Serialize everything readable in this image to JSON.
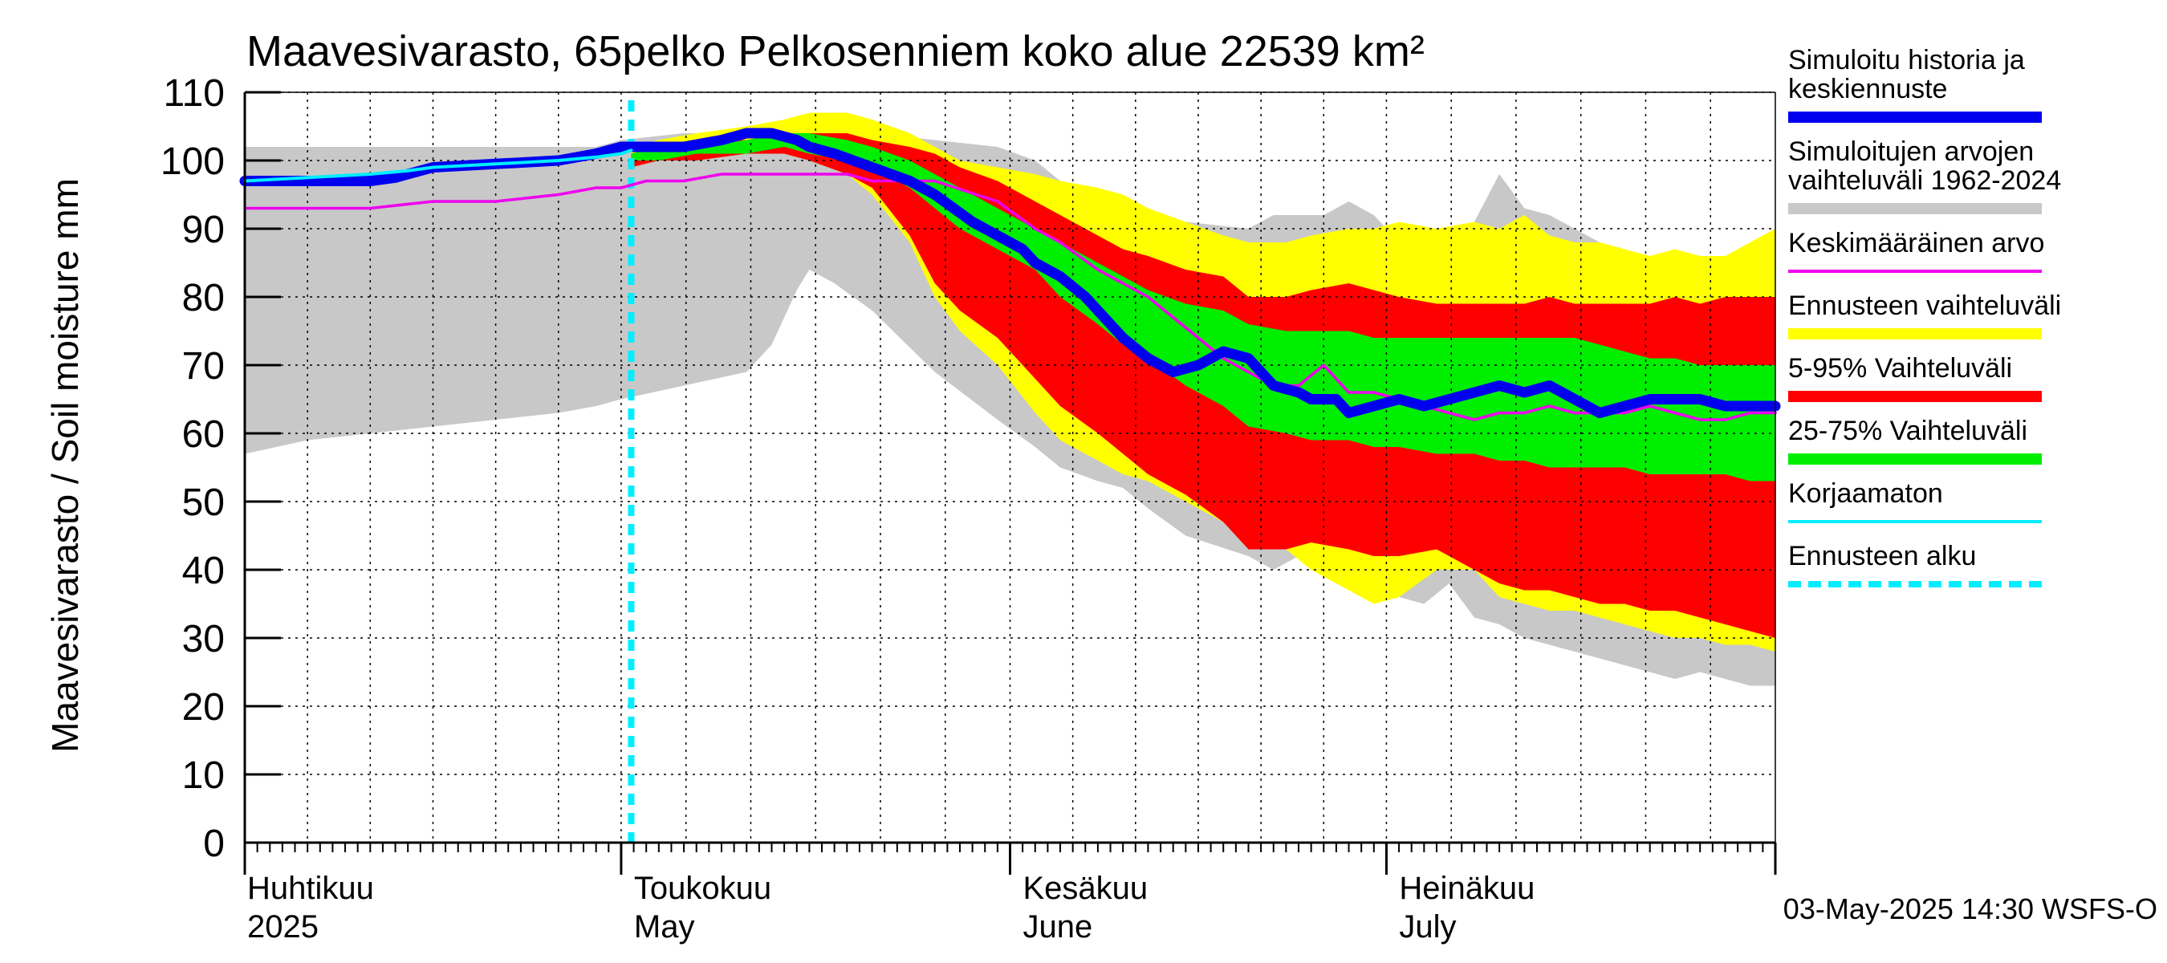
{
  "chart_data": {
    "type": "area",
    "title": "Maavesivarasto, 65pelko Pelkosenniem koko alue 22539 km²",
    "ylabel": "Maavesivarasto / Soil moisture   mm",
    "xlabel": "",
    "ylim": [
      0,
      110
    ],
    "yticks": [
      0,
      10,
      20,
      30,
      40,
      50,
      60,
      70,
      80,
      90,
      100,
      110
    ],
    "xlim_days": [
      0,
      122
    ],
    "x_unit": "days since 2025-04-01",
    "forecast_start_day": 30.8,
    "month_labels": [
      {
        "day": 0,
        "fi": "Huhtikuu",
        "en": "2025"
      },
      {
        "day": 30,
        "fi": "Toukokuu",
        "en": "May"
      },
      {
        "day": 61,
        "fi": "Kesäkuu",
        "en": "June"
      },
      {
        "day": 91,
        "fi": "Heinäkuu",
        "en": "July"
      }
    ],
    "timestamp": "03-May-2025 14:30 WSFS-O",
    "legend": [
      {
        "label": "Simuloitu historia ja keskiennuste",
        "color": "#0000ee",
        "style": "thick"
      },
      {
        "label": "Simuloitujen arvojen vaihteluväli 1962-2024",
        "color": "#c8c8c8",
        "style": "thick"
      },
      {
        "label": "Keskimääräinen arvo",
        "color": "#ee00ee",
        "style": "thin"
      },
      {
        "label": "Ennusteen vaihteluväli",
        "color": "#ffff00",
        "style": "thick"
      },
      {
        "label": "5-95% Vaihteluväli",
        "color": "#ff0000",
        "style": "thick"
      },
      {
        "label": "25-75% Vaihteluväli",
        "color": "#00ee00",
        "style": "thick"
      },
      {
        "label": "Korjaamaton",
        "color": "#00eeff",
        "style": "thin"
      },
      {
        "label": "Ennusteen alku",
        "color": "#00eeff",
        "style": "dashed"
      }
    ],
    "series": [
      {
        "name": "Simuloitujen arvojen vaihteluväli 1962-2024",
        "kind": "band",
        "color": "#c8c8c8",
        "x": [
          0,
          5,
          10,
          15,
          20,
          25,
          28,
          30,
          35,
          40,
          42,
          44,
          45,
          47,
          50,
          55,
          60,
          63,
          65,
          68,
          70,
          72,
          75,
          80,
          82,
          84,
          86,
          88,
          90,
          92,
          94,
          96,
          98,
          100,
          102,
          104,
          106,
          108,
          110,
          112,
          114,
          116,
          118,
          120,
          122
        ],
        "upper": [
          102,
          102,
          102,
          102,
          102,
          102,
          102,
          103,
          104,
          104,
          104,
          104,
          104,
          104,
          104,
          103,
          102,
          100,
          97,
          95,
          92,
          91,
          91,
          90,
          92,
          92,
          92,
          94,
          92,
          88,
          88,
          90,
          91,
          98,
          93,
          92,
          90,
          88,
          86,
          85,
          84,
          85,
          85,
          86,
          87
        ],
        "lower": [
          57,
          59,
          60,
          61,
          62,
          63,
          64,
          65,
          67,
          69,
          73,
          81,
          84,
          82,
          78,
          69,
          62,
          58,
          55,
          53,
          52,
          49,
          45,
          42,
          40,
          42,
          47,
          40,
          38,
          36,
          35,
          38,
          33,
          32,
          30,
          29,
          28,
          27,
          26,
          25,
          24,
          25,
          24,
          23,
          23
        ]
      },
      {
        "name": "Ennusteen vaihteluväli",
        "kind": "band",
        "color": "#ffff00",
        "x": [
          30.8,
          33,
          36,
          40,
          43,
          45,
          48,
          50,
          53,
          55,
          57,
          60,
          63,
          65,
          68,
          70,
          72,
          75,
          78,
          80,
          83,
          85,
          88,
          90,
          92,
          95,
          98,
          100,
          102,
          104,
          106,
          108,
          110,
          112,
          114,
          116,
          118,
          120,
          122
        ],
        "upper": [
          102,
          103,
          104,
          105,
          106,
          107,
          107,
          106,
          104,
          102,
          100,
          99,
          98,
          97,
          96,
          95,
          93,
          91,
          89,
          88,
          88,
          89,
          90,
          90,
          91,
          90,
          91,
          90,
          92,
          89,
          88,
          88,
          87,
          86,
          87,
          86,
          86,
          88,
          90
        ],
        "lower": [
          99,
          100,
          100,
          101,
          101,
          100,
          98,
          95,
          88,
          80,
          75,
          70,
          63,
          59,
          56,
          54,
          53,
          50,
          47,
          45,
          43,
          40,
          37,
          35,
          36,
          40,
          40,
          36,
          35,
          34,
          34,
          33,
          32,
          31,
          30,
          30,
          29,
          29,
          28
        ]
      },
      {
        "name": "5-95% Vaihteluväli",
        "kind": "band",
        "color": "#ff0000",
        "x": [
          30.8,
          33,
          36,
          40,
          43,
          45,
          48,
          50,
          53,
          55,
          57,
          60,
          63,
          65,
          68,
          70,
          72,
          75,
          78,
          80,
          83,
          85,
          88,
          90,
          92,
          95,
          98,
          100,
          102,
          104,
          106,
          108,
          110,
          112,
          114,
          116,
          118,
          120,
          122
        ],
        "upper": [
          101,
          102,
          103,
          103,
          104,
          104,
          104,
          103,
          102,
          101,
          99,
          97,
          94,
          92,
          89,
          87,
          86,
          84,
          83,
          80,
          80,
          81,
          82,
          81,
          80,
          79,
          79,
          79,
          79,
          80,
          79,
          79,
          79,
          79,
          80,
          79,
          80,
          80,
          80
        ],
        "lower": [
          99,
          100,
          100,
          101,
          101,
          100,
          98,
          96,
          89,
          82,
          78,
          74,
          68,
          64,
          60,
          57,
          54,
          51,
          47,
          43,
          43,
          44,
          43,
          42,
          42,
          43,
          40,
          38,
          37,
          37,
          36,
          35,
          35,
          34,
          34,
          33,
          32,
          31,
          30
        ]
      },
      {
        "name": "25-75% Vaihteluväli",
        "kind": "band",
        "color": "#00ee00",
        "x": [
          30.8,
          33,
          36,
          40,
          43,
          45,
          48,
          50,
          53,
          55,
          57,
          60,
          63,
          65,
          68,
          70,
          72,
          75,
          78,
          80,
          83,
          85,
          88,
          90,
          92,
          95,
          98,
          100,
          102,
          104,
          106,
          108,
          110,
          112,
          114,
          116,
          118,
          120,
          122
        ],
        "upper": [
          101,
          102,
          102,
          103,
          104,
          104,
          103,
          102,
          100,
          98,
          96,
          93,
          90,
          88,
          85,
          83,
          81,
          79,
          78,
          76,
          75,
          75,
          75,
          74,
          74,
          74,
          74,
          74,
          74,
          74,
          74,
          73,
          72,
          71,
          71,
          70,
          70,
          70,
          70
        ],
        "lower": [
          100,
          100,
          101,
          101,
          102,
          101,
          100,
          99,
          96,
          93,
          90,
          87,
          84,
          80,
          76,
          73,
          71,
          67,
          64,
          61,
          60,
          59,
          59,
          58,
          58,
          57,
          57,
          56,
          56,
          55,
          55,
          55,
          55,
          54,
          54,
          54,
          54,
          53,
          53
        ]
      },
      {
        "name": "Keskimääräinen arvo",
        "kind": "line",
        "color": "#ee00ee",
        "x": [
          0,
          5,
          10,
          15,
          20,
          25,
          28,
          30,
          32,
          35,
          38,
          40,
          42,
          45,
          48,
          50,
          55,
          60,
          63,
          65,
          68,
          70,
          72,
          74,
          76,
          78,
          80,
          82,
          84,
          86,
          88,
          90,
          92,
          94,
          96,
          98,
          100,
          102,
          104,
          106,
          108,
          110,
          112,
          114,
          116,
          118,
          120,
          122
        ],
        "y": [
          93,
          93,
          93,
          94,
          94,
          95,
          96,
          96,
          97,
          97,
          98,
          98,
          98,
          98,
          98,
          97,
          97,
          94,
          90,
          88,
          84,
          82,
          80,
          77,
          74,
          71,
          69,
          67,
          67,
          70,
          66,
          66,
          65,
          64,
          63,
          62,
          63,
          63,
          64,
          63,
          63,
          63,
          64,
          63,
          62,
          62,
          63,
          63
        ]
      },
      {
        "name": "Korjaamaton",
        "kind": "line",
        "color": "#00eeff",
        "x": [
          0,
          5,
          10,
          13,
          15,
          20,
          25,
          28,
          30,
          30.8
        ],
        "y": [
          97,
          97.5,
          98,
          98.5,
          99,
          99.5,
          100,
          100.5,
          101,
          101.5
        ]
      },
      {
        "name": "Simuloitu historia ja keskiennuste",
        "kind": "line",
        "color": "#0000ee",
        "x": [
          0,
          5,
          10,
          12,
          13,
          15,
          20,
          25,
          28,
          30,
          32,
          35,
          38,
          40,
          42,
          44,
          45,
          47,
          50,
          53,
          55,
          58,
          60,
          62,
          63,
          65,
          67,
          68,
          70,
          72,
          74,
          76,
          78,
          80,
          82,
          84,
          85,
          87,
          88,
          90,
          92,
          94,
          96,
          98,
          100,
          102,
          104,
          106,
          108,
          110,
          112,
          114,
          116,
          118,
          120,
          122
        ],
        "y": [
          97,
          97,
          97,
          97.5,
          98,
          99,
          99.5,
          100,
          101,
          102,
          102,
          102,
          103,
          104,
          104,
          103,
          102,
          101,
          99,
          97,
          95,
          91,
          89,
          87,
          85,
          83,
          80,
          78,
          74,
          71,
          69,
          70,
          72,
          71,
          67,
          66,
          65,
          65,
          63,
          64,
          65,
          64,
          65,
          66,
          67,
          66,
          67,
          65,
          63,
          64,
          65,
          65,
          65,
          64,
          64,
          64
        ]
      }
    ]
  }
}
